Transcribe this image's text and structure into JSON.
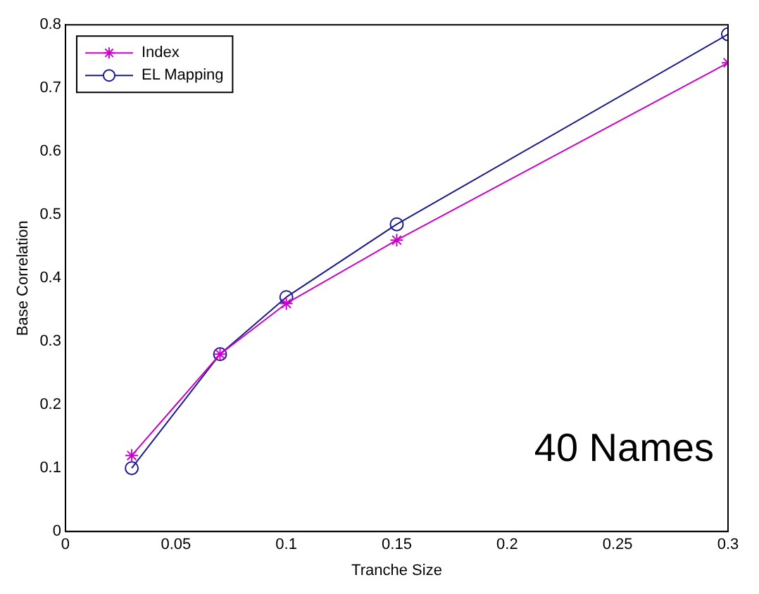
{
  "chart_data": {
    "type": "line",
    "xlabel": "Tranche Size",
    "ylabel": "Base Correlation",
    "xlim": [
      0,
      0.3
    ],
    "xticks": [
      0,
      0.05,
      0.1,
      0.15,
      0.2,
      0.25,
      0.3
    ],
    "ylim": [
      0,
      0.8
    ],
    "yticks": [
      0,
      0.1,
      0.2,
      0.3,
      0.4,
      0.5,
      0.6,
      0.7,
      0.8
    ],
    "x": [
      0.03,
      0.07,
      0.1,
      0.15,
      0.3
    ],
    "grid": false,
    "legend": "top left",
    "line_style": "solid",
    "series": [
      {
        "name": "Index",
        "color": "#cc00cc",
        "marker": "cross",
        "values": [
          0.12,
          0.28,
          0.36,
          0.46,
          0.74
        ]
      },
      {
        "name": "EL Mapping",
        "color": "#1a1a8c",
        "marker": "circle",
        "values": [
          0.1,
          0.28,
          0.37,
          0.485,
          0.785
        ]
      }
    ],
    "annotations": [
      "40 Names"
    ]
  }
}
